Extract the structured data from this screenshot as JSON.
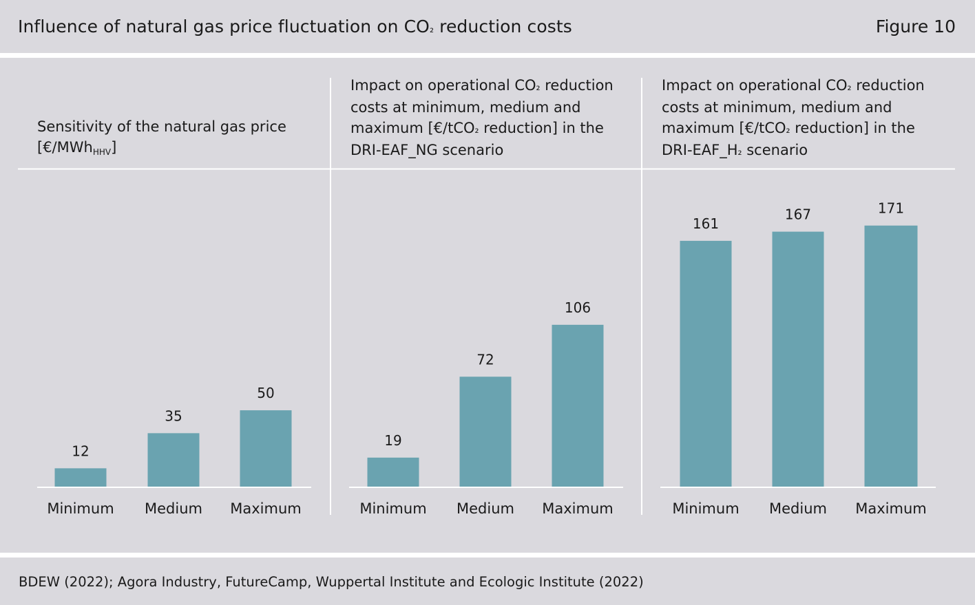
{
  "header": {
    "title_pre": "Influence of natural gas price fluctuation on CO",
    "title_sub": "₂",
    "title_post": " reduction costs",
    "figure_label": "Figure 10"
  },
  "source": "BDEW (2022); Agora Industry, FutureCamp, Wuppertal Institute and Ecologic Institute (2022)",
  "panels": [
    {
      "title_line1": "Sensitivity of the natural gas price",
      "title_line2_pre": "[€/MWh",
      "title_line2_sub": "HHV",
      "title_line2_post": "]"
    },
    {
      "title_line1_pre": "Impact on operational CO",
      "title_line1_sub": "₂",
      "title_line1_post": " reduction",
      "title_line2": "costs at minimum, medium and",
      "title_line3_pre": "maximum [€/tCO",
      "title_line3_sub": "₂",
      "title_line3_post": " reduction] in the",
      "title_line4": "DRI-EAF_NG scenario"
    },
    {
      "title_line1_pre": "Impact on operational CO",
      "title_line1_sub": "₂",
      "title_line1_post": " reduction",
      "title_line2": "costs at minimum, medium and",
      "title_line3_pre": "maximum [€/tCO",
      "title_line3_sub": "₂",
      "title_line3_post": " reduction] in the",
      "title_line4_pre": "DRI-EAF_H",
      "title_line4_sub": "₂",
      "title_line4_post": " scenario"
    }
  ],
  "chart_data": [
    {
      "type": "bar",
      "categories": [
        "Minimum",
        "Medium",
        "Maximum"
      ],
      "values": [
        12,
        35,
        50
      ]
    },
    {
      "type": "bar",
      "categories": [
        "Minimum",
        "Medium",
        "Maximum"
      ],
      "values": [
        19,
        72,
        106
      ]
    },
    {
      "type": "bar",
      "categories": [
        "Minimum",
        "Medium",
        "Maximum"
      ],
      "values": [
        161,
        167,
        171
      ]
    }
  ],
  "colors": {
    "bar": "#6aa3b0",
    "background": "#dad9de"
  }
}
